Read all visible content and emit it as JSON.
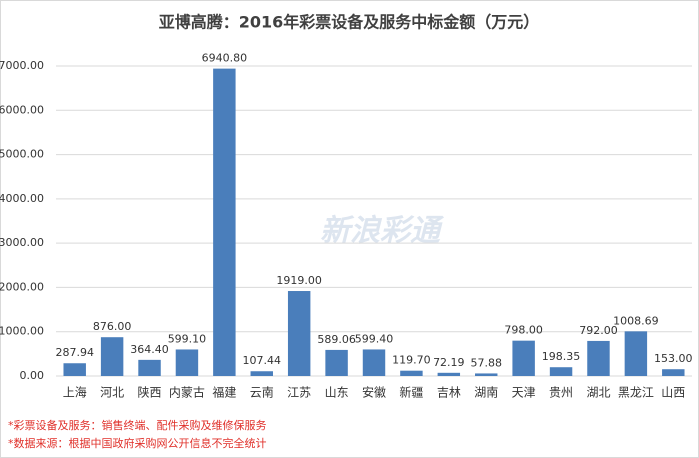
{
  "chart_data": {
    "type": "bar",
    "title": "亚博高腾：2016年彩票设备及服务中标金额（万元）",
    "categories": [
      "上海",
      "河北",
      "陕西",
      "内蒙古",
      "福建",
      "云南",
      "江苏",
      "山东",
      "安徽",
      "新疆",
      "吉林",
      "湖南",
      "天津",
      "贵州",
      "湖北",
      "黑龙江",
      "山西"
    ],
    "values": [
      287.94,
      876,
      364.4,
      599.1,
      6940.8,
      107.44,
      1919,
      589.06,
      599.4,
      119.7,
      72.19,
      57.88,
      798,
      198.35,
      792,
      1008.69,
      153
    ],
    "value_labels": [
      "287.94",
      "876.00",
      "364.40",
      "599.10",
      "6940.80",
      "107.44",
      "1919.00",
      "589.06",
      "599.40",
      "119.70",
      "72.19",
      "57.88",
      "798.00",
      "198.35",
      "792.00",
      "1008.69",
      "153.00"
    ],
    "color": "#4a7ebb",
    "ylim": [
      0,
      7000
    ],
    "yticks": [
      {
        "value": 0,
        "label": "0.00"
      },
      {
        "value": 1000,
        "label": "1000.00"
      },
      {
        "value": 2000,
        "label": "2000.00"
      },
      {
        "value": 3000,
        "label": "3000.00"
      },
      {
        "value": 4000,
        "label": "4000.00"
      },
      {
        "value": 5000,
        "label": "5000.00"
      },
      {
        "value": 6000,
        "label": "6000.00"
      },
      {
        "value": 7000,
        "label": "7000.00"
      }
    ],
    "grid": true,
    "watermark": "新浪彩通",
    "footnotes": [
      "*彩票设备及服务：销售终端、配件采购及维修保服务",
      "*数据来源：根据中国政府采购网公开信息不完全统计"
    ]
  }
}
